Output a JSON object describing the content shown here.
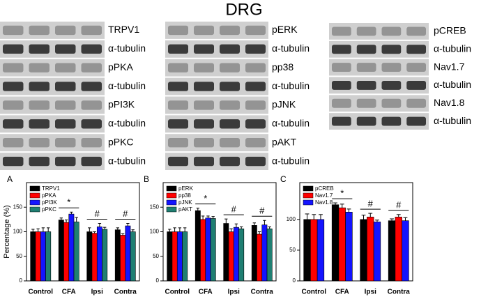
{
  "title": "DRG",
  "blots": [
    {
      "labels": [
        "TRPV1",
        "α-tubulin",
        "pPKA",
        "α-tubulin",
        "pPI3K",
        "α-tubulin",
        "pPKC",
        "α-tubulin"
      ]
    },
    {
      "labels": [
        "pERK",
        "α-tubulin",
        "pp38",
        "α-tubulin",
        "pJNK",
        "α-tubulin",
        "pAKT",
        "α-tubulin"
      ]
    },
    {
      "labels": [
        "pCREB",
        "α-tubulin",
        "Nav1.7",
        "α-tubulin",
        "Nav1.8",
        "α-tubulin"
      ]
    }
  ],
  "chart_data": [
    {
      "type": "bar",
      "panel": "A",
      "y_label": "Percentage (%)",
      "categories": [
        "Control",
        "CFA",
        "Ipsi",
        "Contra"
      ],
      "significance": [
        null,
        "*",
        "#",
        "#"
      ],
      "ylim": [
        0,
        200
      ],
      "yticks": [
        0,
        50,
        100,
        150
      ],
      "legend": "top-left",
      "series": [
        {
          "name": "TRPV1",
          "color": "#000000",
          "values": [
            100,
            124,
            100,
            104
          ],
          "errors": [
            5,
            4,
            8,
            4
          ]
        },
        {
          "name": "pPKA",
          "color": "#ff0000",
          "values": [
            100,
            119,
            97,
            93
          ],
          "errors": [
            6,
            5,
            3,
            3
          ]
        },
        {
          "name": "pPI3K",
          "color": "#1414ff",
          "values": [
            100,
            136,
            110,
            112
          ],
          "errors": [
            8,
            4,
            7,
            5
          ]
        },
        {
          "name": "pPKC",
          "color": "#1f7f72",
          "values": [
            100,
            120,
            105,
            100
          ],
          "errors": [
            8,
            9,
            4,
            4
          ]
        }
      ]
    },
    {
      "type": "bar",
      "panel": "B",
      "categories": [
        "Control",
        "CFA",
        "Ipsi",
        "Contra"
      ],
      "significance": [
        null,
        "*",
        "#",
        "#"
      ],
      "ylim": [
        0,
        200
      ],
      "yticks": [
        0,
        50,
        100,
        150
      ],
      "legend": "top-left",
      "series": [
        {
          "name": "pERK",
          "color": "#000000",
          "values": [
            100,
            143,
            117,
            113
          ],
          "errors": [
            5,
            5,
            9,
            5
          ]
        },
        {
          "name": "pp38",
          "color": "#ff0000",
          "values": [
            100,
            125,
            100,
            95
          ],
          "errors": [
            8,
            7,
            6,
            5
          ]
        },
        {
          "name": "pJNK",
          "color": "#1414ff",
          "values": [
            100,
            128,
            109,
            114
          ],
          "errors": [
            8,
            4,
            7,
            9
          ]
        },
        {
          "name": "pAKT",
          "color": "#1f7f72",
          "values": [
            100,
            127,
            106,
            106
          ],
          "errors": [
            8,
            4,
            4,
            4
          ]
        }
      ]
    },
    {
      "type": "bar",
      "panel": "C",
      "categories": [
        "Control",
        "CFA",
        "Ipsi",
        "Contra"
      ],
      "significance": [
        null,
        "*",
        "#",
        "#"
      ],
      "ylim": [
        0,
        160
      ],
      "yticks": [
        0,
        50,
        100
      ],
      "legend": "top-left",
      "series": [
        {
          "name": "pCREB",
          "color": "#000000",
          "values": [
            100,
            124,
            100,
            98
          ],
          "errors": [
            9,
            3,
            7,
            3
          ]
        },
        {
          "name": "Nav1.7",
          "color": "#ff0000",
          "values": [
            100,
            119,
            104,
            104
          ],
          "errors": [
            8,
            6,
            6,
            4
          ]
        },
        {
          "name": "Nav1.8",
          "color": "#1414ff",
          "values": [
            100,
            112,
            96,
            98
          ],
          "errors": [
            8,
            5,
            3,
            5
          ]
        }
      ]
    }
  ]
}
